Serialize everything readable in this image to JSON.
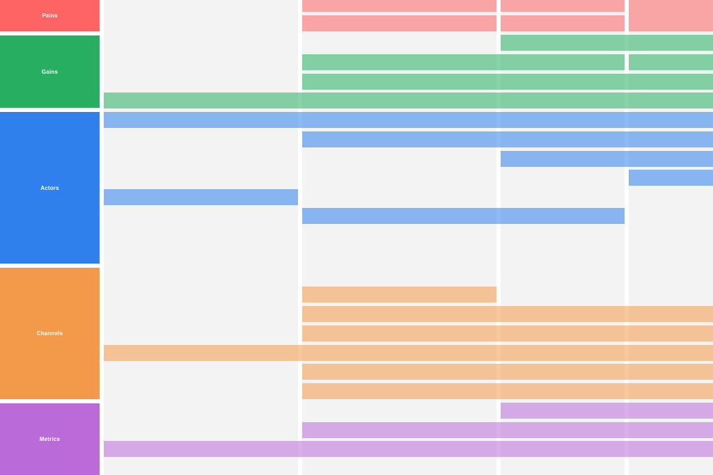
{
  "lanes": [
    {
      "key": "pains",
      "label": "Pains",
      "color": "#ff6464"
    },
    {
      "key": "gains",
      "label": "Gains",
      "color": "#27ae60"
    },
    {
      "key": "actors",
      "label": "Actors",
      "color": "#2f80ed"
    },
    {
      "key": "channels",
      "label": "Channels",
      "color": "#f2994a"
    },
    {
      "key": "metrics",
      "label": "Metrics",
      "color": "#bb6bd9"
    }
  ]
}
